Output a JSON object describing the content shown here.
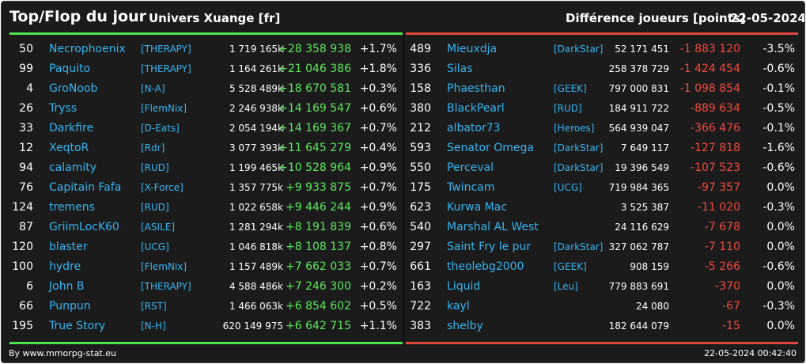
{
  "header": {
    "title": "Top/Flop du jour",
    "universe": "Univers Xuange [fr]",
    "metric": "Différence joueurs [points]",
    "date": "22-05-2024"
  },
  "colors": {
    "background": "#1b1b1b",
    "top_accent": "#4ee34e",
    "flop_accent": "#e0463c",
    "name_link": "#35b4f0"
  },
  "top": [
    {
      "rank": "50",
      "name": "Necrophoenix",
      "alliance": "[THERAPY]",
      "points": "1 719 165k",
      "diff": "+28 358 938",
      "pct": "+1.7%"
    },
    {
      "rank": "99",
      "name": "Paquito",
      "alliance": "[THERAPY]",
      "points": "1 164 261k",
      "diff": "+21 046 386",
      "pct": "+1.8%"
    },
    {
      "rank": "4",
      "name": "GroNoob",
      "alliance": "[N-A]",
      "points": "5 528 489k",
      "diff": "+18 670 581",
      "pct": "+0.3%"
    },
    {
      "rank": "26",
      "name": "Tryss",
      "alliance": "[FlemNix]",
      "points": "2 246 938k",
      "diff": "+14 169 547",
      "pct": "+0.6%"
    },
    {
      "rank": "33",
      "name": "Darkfire",
      "alliance": "[D-Eats]",
      "points": "2 054 194k",
      "diff": "+14 169 367",
      "pct": "+0.7%"
    },
    {
      "rank": "12",
      "name": "XeqtoR",
      "alliance": "[Rdr]",
      "points": "3 077 393k",
      "diff": "+11 645 279",
      "pct": "+0.4%"
    },
    {
      "rank": "94",
      "name": "calamity",
      "alliance": "[RUD]",
      "points": "1 199 465k",
      "diff": "+10 528 964",
      "pct": "+0.9%"
    },
    {
      "rank": "76",
      "name": "Capitain Fafa",
      "alliance": "[X-Force]",
      "points": "1 357 775k",
      "diff": "+9 933 875",
      "pct": "+0.7%"
    },
    {
      "rank": "124",
      "name": "tremens",
      "alliance": "[RUD]",
      "points": "1 022 658k",
      "diff": "+9 446 244",
      "pct": "+0.9%"
    },
    {
      "rank": "87",
      "name": "GriimLocK60",
      "alliance": "[ASILE]",
      "points": "1 281 294k",
      "diff": "+8 191 839",
      "pct": "+0.6%"
    },
    {
      "rank": "120",
      "name": "blaster",
      "alliance": "[UCG]",
      "points": "1 046 818k",
      "diff": "+8 108 137",
      "pct": "+0.8%"
    },
    {
      "rank": "100",
      "name": "hydre",
      "alliance": "[FlemNix]",
      "points": "1 157 489k",
      "diff": "+7 662 033",
      "pct": "+0.7%"
    },
    {
      "rank": "6",
      "name": "John B",
      "alliance": "[THERAPY]",
      "points": "4 588 486k",
      "diff": "+7 246 300",
      "pct": "+0.2%"
    },
    {
      "rank": "66",
      "name": "Punpun",
      "alliance": "[RST]",
      "points": "1 466 063k",
      "diff": "+6 854 602",
      "pct": "+0.5%"
    },
    {
      "rank": "195",
      "name": "True Story",
      "alliance": "[N-H]",
      "points": "620 149 975",
      "diff": "+6 642 715",
      "pct": "+1.1%"
    }
  ],
  "flop": [
    {
      "rank": "489",
      "name": "Mieuxdja",
      "alliance": "[DarkStar]",
      "points": "52 171 451",
      "diff": "-1 883 120",
      "pct": "-3.5%"
    },
    {
      "rank": "336",
      "name": "Silas",
      "alliance": "",
      "points": "258 378 729",
      "diff": "-1 424 454",
      "pct": "-0.6%"
    },
    {
      "rank": "158",
      "name": "Phaesthan",
      "alliance": "[GEEK]",
      "points": "797 000 831",
      "diff": "-1 098 854",
      "pct": "-0.1%"
    },
    {
      "rank": "380",
      "name": "BlackPearl",
      "alliance": "[RUD]",
      "points": "184 911 722",
      "diff": "-889 634",
      "pct": "-0.5%"
    },
    {
      "rank": "212",
      "name": "albator73",
      "alliance": "[Heroes]",
      "points": "564 939 047",
      "diff": "-366 476",
      "pct": "-0.1%"
    },
    {
      "rank": "593",
      "name": "Senator Omega",
      "alliance": "[DarkStar]",
      "points": "7 649 117",
      "diff": "-127 818",
      "pct": "-1.6%"
    },
    {
      "rank": "550",
      "name": "Perceval",
      "alliance": "[DarkStar]",
      "points": "19 396 549",
      "diff": "-107 523",
      "pct": "-0.6%"
    },
    {
      "rank": "175",
      "name": "Twincam",
      "alliance": "[UCG]",
      "points": "719 984 365",
      "diff": "-97 357",
      "pct": "0.0%"
    },
    {
      "rank": "623",
      "name": "Kurwa Mac",
      "alliance": "",
      "points": "3 525 387",
      "diff": "-11 020",
      "pct": "-0.3%"
    },
    {
      "rank": "540",
      "name": "Marshal AL West",
      "alliance": "",
      "points": "24 116 629",
      "diff": "-7 678",
      "pct": "0.0%"
    },
    {
      "rank": "297",
      "name": "Saint Fry le pur",
      "alliance": "[DarkStar]",
      "points": "327 062 787",
      "diff": "-7 110",
      "pct": "0.0%"
    },
    {
      "rank": "661",
      "name": "theolebg2000",
      "alliance": "[GEEK]",
      "points": "908 159",
      "diff": "-5 266",
      "pct": "-0.6%"
    },
    {
      "rank": "163",
      "name": "Liquid",
      "alliance": "[Leu]",
      "points": "779 883 691",
      "diff": "-370",
      "pct": "0.0%"
    },
    {
      "rank": "722",
      "name": "kayl",
      "alliance": "",
      "points": "24 080",
      "diff": "-67",
      "pct": "-0.3%"
    },
    {
      "rank": "383",
      "name": "shelby",
      "alliance": "",
      "points": "182 644 079",
      "diff": "-15",
      "pct": "0.0%"
    }
  ],
  "footer": {
    "credit": "By www.mmorpg-stat.eu",
    "timestamp": "22-05-2024 00:42:40"
  }
}
